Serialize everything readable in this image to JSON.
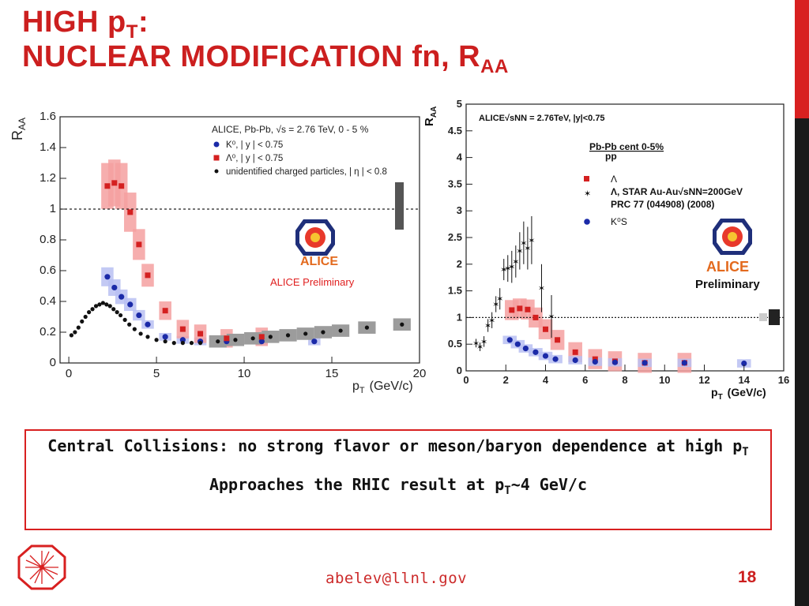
{
  "slide": {
    "title_line1": "HIGH p",
    "title_line1_sub": "T",
    "title_line1_suffix": ":",
    "title_line2": "NUCLEAR MODIFICATION fn, R",
    "title_line2_sub": "AA",
    "accent_color": "#d82020",
    "dark_bar_color": "#1a1a1a",
    "box_line1_a": "Central Collisions: no strong flavor or meson/baryon dependence at high p",
    "box_line1_sub": "T",
    "box_line2_a": "Approaches the RHIC result at p",
    "box_line2_sub": "T",
    "box_line2_b": "~4 GeV/c",
    "footer_email": "abelev@llnl.gov",
    "page_number": "18",
    "footer_logo": "alice-logo-icon"
  },
  "chart_data": [
    {
      "type": "scatter",
      "xlabel": "p",
      "xlabel_sub": "T",
      "xlabel_unit": "(GeV/c)",
      "ylabel": "R",
      "ylabel_sub": "AA",
      "xlim": [
        -0.5,
        20
      ],
      "ylim": [
        0,
        1.6
      ],
      "xticks": [
        "0",
        "5",
        "10",
        "15",
        "20"
      ],
      "yticks": [
        "0",
        "0.2",
        "0.4",
        "0.6",
        "0.8",
        "1",
        "1.2",
        "1.4",
        "1.6"
      ],
      "reference_line": 1,
      "legend_title": "ALICE, Pb-Pb, √s = 2.76 TeV, 0 - 5 %",
      "legend_position": "top-right",
      "logo_label": "ALICE",
      "annotation": "ALICE Preliminary",
      "series": [
        {
          "name": "K⁰, | y | < 0.75",
          "marker": "circle",
          "color": "#1b2aa8",
          "band_color": "#b9bff2",
          "x": [
            2.2,
            2.6,
            3.0,
            3.5,
            4.0,
            4.5,
            5.5,
            6.5,
            7.5,
            9.0,
            11.0,
            14.0
          ],
          "y": [
            0.56,
            0.49,
            0.43,
            0.38,
            0.31,
            0.25,
            0.17,
            0.15,
            0.14,
            0.14,
            0.14,
            0.14
          ]
        },
        {
          "name": "Λ⁰, | y | < 0.75",
          "marker": "square",
          "color": "#d42020",
          "band_color": "#f5a0a0",
          "x": [
            2.2,
            2.6,
            3.0,
            3.5,
            4.0,
            4.5,
            5.5,
            6.5,
            7.5,
            9.0,
            11.0
          ],
          "y": [
            1.15,
            1.17,
            1.15,
            0.98,
            0.77,
            0.57,
            0.34,
            0.22,
            0.19,
            0.16,
            0.17
          ]
        },
        {
          "name": "unidentified charged particles, | η | < 0.8",
          "marker": "dot",
          "color": "#111111",
          "band_color": "#9c9c9c",
          "x": [
            0.15,
            0.35,
            0.55,
            0.75,
            0.95,
            1.15,
            1.35,
            1.55,
            1.75,
            1.95,
            2.15,
            2.35,
            2.55,
            2.75,
            2.95,
            3.2,
            3.45,
            3.75,
            4.1,
            4.5,
            5.0,
            5.5,
            6.0,
            6.5,
            7.0,
            7.5,
            8.5,
            9.5,
            10.5,
            11.5,
            12.5,
            13.5,
            14.5,
            15.5,
            17.0,
            19.0
          ],
          "y": [
            0.18,
            0.2,
            0.23,
            0.27,
            0.3,
            0.33,
            0.35,
            0.37,
            0.38,
            0.39,
            0.38,
            0.37,
            0.35,
            0.33,
            0.31,
            0.28,
            0.25,
            0.22,
            0.19,
            0.17,
            0.15,
            0.14,
            0.13,
            0.13,
            0.13,
            0.13,
            0.14,
            0.15,
            0.16,
            0.17,
            0.18,
            0.19,
            0.2,
            0.21,
            0.23,
            0.25
          ]
        }
      ]
    },
    {
      "type": "scatter",
      "title": "ALICE√sNN = 2.76TeV, |y|<0.75",
      "xlabel": "p",
      "xlabel_sub": "T",
      "xlabel_unit": "(GeV/c)",
      "ylabel": "R",
      "ylabel_sub": "AA",
      "xlim": [
        0,
        16
      ],
      "ylim": [
        0,
        5
      ],
      "xticks": [
        "0",
        "2",
        "4",
        "6",
        "8",
        "10",
        "12",
        "14",
        "16"
      ],
      "yticks": [
        "0",
        "0.5",
        "1",
        "1.5",
        "2",
        "2.5",
        "3",
        "3.5",
        "4",
        "4.5",
        "5"
      ],
      "reference_line": 1,
      "legend_header_1": "Pb-Pb cent 0-5%",
      "legend_header_2": "pp",
      "legend_position": "top-right",
      "star_reference_line2": "PRC 77 (044908) (2008)",
      "logo_label": "ALICE",
      "annotation": "Preliminary",
      "series": [
        {
          "name": "Λ",
          "marker": "square",
          "color": "#d42020",
          "band_color": "#f5a0a0",
          "x": [
            2.3,
            2.7,
            3.1,
            3.5,
            4.0,
            4.6,
            5.5,
            6.5,
            7.5,
            9.0,
            11.0
          ],
          "y": [
            1.14,
            1.17,
            1.15,
            1.0,
            0.78,
            0.58,
            0.35,
            0.22,
            0.18,
            0.15,
            0.15
          ]
        },
        {
          "name": "Λ, STAR Au-Au√sNN=200GeV",
          "marker": "star",
          "color": "#111111",
          "x": [
            0.5,
            0.7,
            0.9,
            1.1,
            1.3,
            1.5,
            1.7,
            1.9,
            2.1,
            2.3,
            2.5,
            2.7,
            2.9,
            3.1,
            3.3,
            3.8,
            4.3
          ],
          "y": [
            0.52,
            0.45,
            0.55,
            0.85,
            0.95,
            1.25,
            1.35,
            1.9,
            1.92,
            1.95,
            2.05,
            2.25,
            2.4,
            2.3,
            2.45,
            1.55,
            1.02
          ],
          "err": [
            0.08,
            0.08,
            0.1,
            0.12,
            0.15,
            0.15,
            0.2,
            0.2,
            0.25,
            0.3,
            0.3,
            0.35,
            0.4,
            0.4,
            0.45,
            0.45,
            0.4
          ]
        },
        {
          "name": "K⁰S",
          "marker": "circle",
          "color": "#1b2aa8",
          "band_color": "#b9bff2",
          "x": [
            2.2,
            2.6,
            3.0,
            3.5,
            4.0,
            4.5,
            5.5,
            6.5,
            7.5,
            9.0,
            11.0,
            14.0
          ],
          "y": [
            0.58,
            0.5,
            0.42,
            0.35,
            0.28,
            0.22,
            0.2,
            0.17,
            0.16,
            0.15,
            0.15,
            0.14
          ]
        }
      ]
    }
  ]
}
